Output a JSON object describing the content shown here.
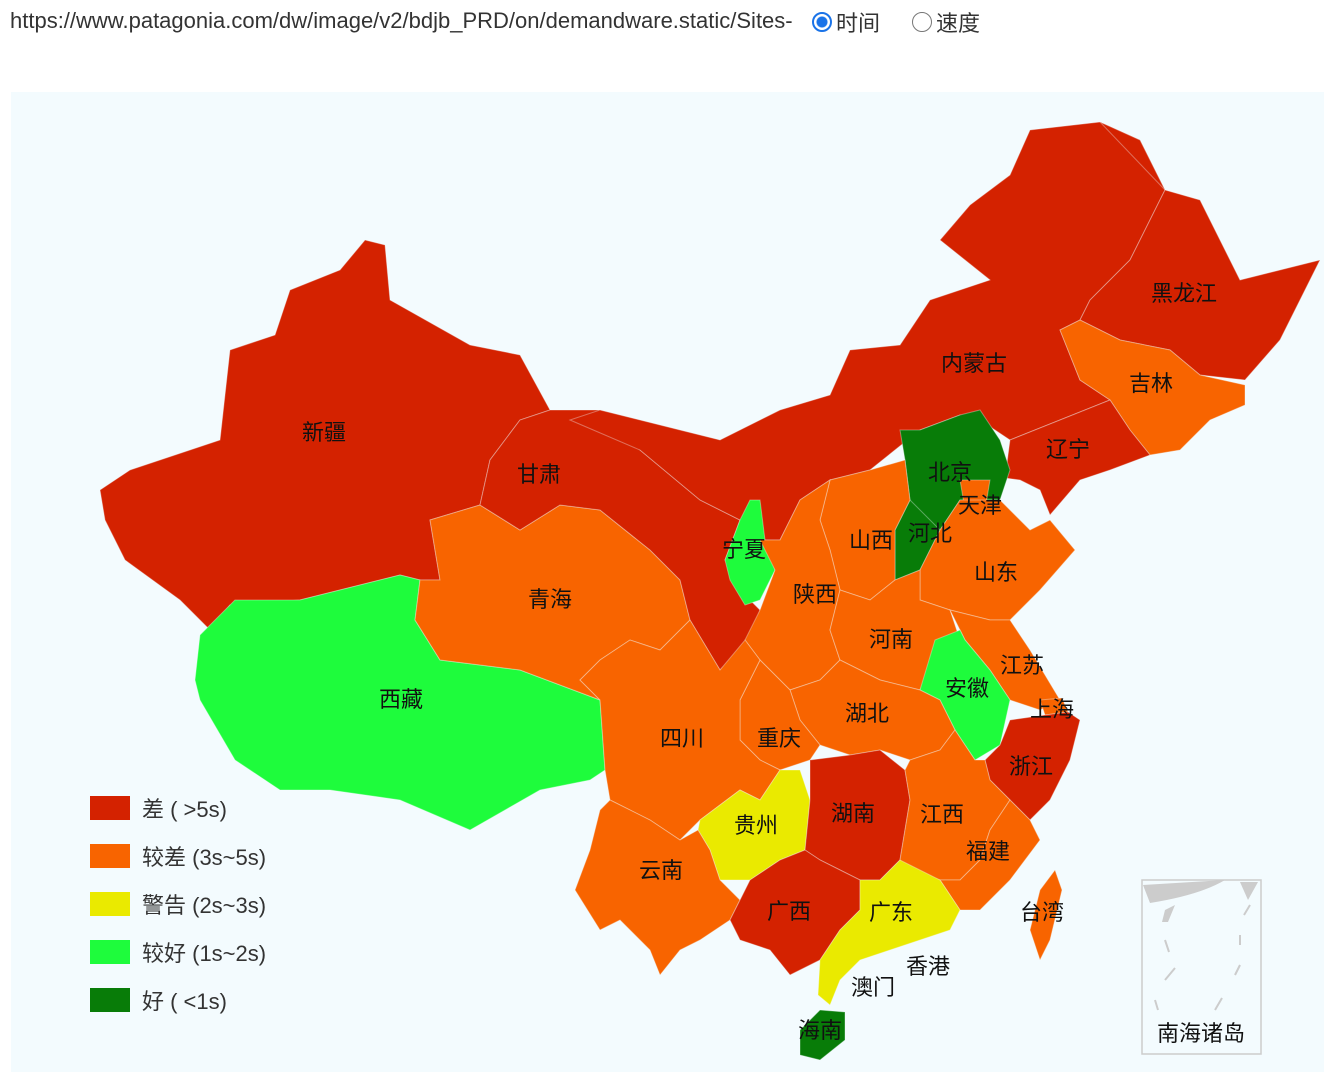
{
  "header": {
    "url": "https://www.patagonia.com/dw/image/v2/bdjb_PRD/on/demandware.static/Sites-",
    "radio_time": "时间",
    "radio_speed": "速度",
    "selected": "时间"
  },
  "colors": {
    "bad": "#d42200",
    "poor": "#f86400",
    "warn": "#eaea00",
    "good": "#1efc3c",
    "best": "#087c08"
  },
  "legend": [
    {
      "label": "差 ( >5s)",
      "level": "bad"
    },
    {
      "label": "较差 (3s~5s)",
      "level": "poor"
    },
    {
      "label": "警告 (2s~3s)",
      "level": "warn"
    },
    {
      "label": "较好 (1s~2s)",
      "level": "good"
    },
    {
      "label": "好 ( <1s)",
      "level": "best"
    }
  ],
  "provinces": [
    {
      "name": "新疆",
      "level": "bad"
    },
    {
      "name": "西藏",
      "level": "good"
    },
    {
      "name": "青海",
      "level": "poor"
    },
    {
      "name": "甘肃",
      "level": "bad"
    },
    {
      "name": "内蒙古",
      "level": "bad"
    },
    {
      "name": "黑龙江",
      "level": "bad"
    },
    {
      "name": "吉林",
      "level": "poor"
    },
    {
      "name": "辽宁",
      "level": "bad"
    },
    {
      "name": "北京",
      "level": "best"
    },
    {
      "name": "河北",
      "level": "best"
    },
    {
      "name": "天津",
      "level": "poor"
    },
    {
      "name": "山西",
      "level": "poor"
    },
    {
      "name": "宁夏",
      "level": "good"
    },
    {
      "name": "陕西",
      "level": "poor"
    },
    {
      "name": "山东",
      "level": "poor"
    },
    {
      "name": "河南",
      "level": "poor"
    },
    {
      "name": "江苏",
      "level": "poor"
    },
    {
      "name": "安徽",
      "level": "good"
    },
    {
      "name": "上海",
      "level": "poor"
    },
    {
      "name": "浙江",
      "level": "bad"
    },
    {
      "name": "湖北",
      "level": "poor"
    },
    {
      "name": "重庆",
      "level": "poor"
    },
    {
      "name": "四川",
      "level": "poor"
    },
    {
      "name": "贵州",
      "level": "warn"
    },
    {
      "name": "云南",
      "level": "poor"
    },
    {
      "name": "湖南",
      "level": "bad"
    },
    {
      "name": "江西",
      "level": "poor"
    },
    {
      "name": "福建",
      "level": "poor"
    },
    {
      "name": "广西",
      "level": "bad"
    },
    {
      "name": "广东",
      "level": "warn"
    },
    {
      "name": "海南",
      "level": "best"
    },
    {
      "name": "台湾",
      "level": "poor"
    },
    {
      "name": "香港",
      "level": "warn"
    },
    {
      "name": "澳门",
      "level": "warn"
    }
  ],
  "inset_label": "南海诸岛"
}
